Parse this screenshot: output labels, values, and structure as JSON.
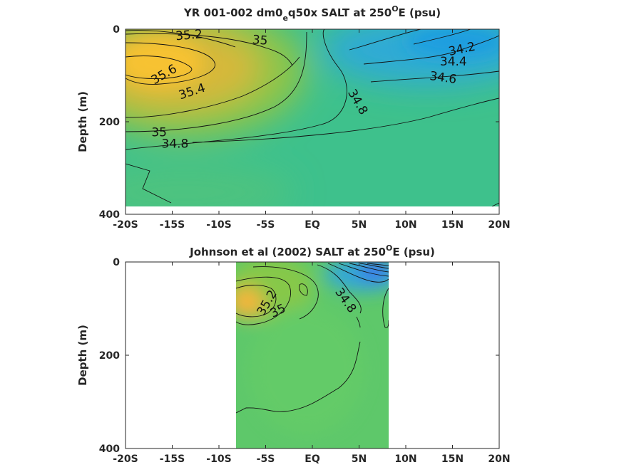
{
  "chart_data": [
    {
      "type": "contour",
      "title": {
        "pre": "YR 001-002 dm0",
        "sub": "e",
        "mid": "q50x SALT at 250",
        "sup": "O",
        "post": "E (psu)"
      },
      "ylabel": "Depth (m)",
      "xlim": [
        -20,
        20
      ],
      "ylim": [
        400,
        0
      ],
      "y_reversed": true,
      "x_ticks": [
        -20,
        -15,
        -10,
        -5,
        0,
        5,
        10,
        15,
        20
      ],
      "x_tick_labels": [
        "-20S",
        "-15S",
        "-10S",
        "-5S",
        "EQ",
        "5N",
        "10N",
        "15N",
        "20N"
      ],
      "y_ticks": [
        0,
        200,
        400
      ],
      "y_tick_labels": [
        "0",
        "200",
        "400"
      ],
      "data_extent": {
        "lat": [
          -20,
          20
        ],
        "depth": [
          0,
          380
        ]
      },
      "colormap": "parula",
      "contour_labels": [
        {
          "text": "35.2",
          "lat": -13.2,
          "depth": 12,
          "angle": -5
        },
        {
          "text": "35",
          "lat": -5.6,
          "depth": 23,
          "angle": 5
        },
        {
          "text": "35.6",
          "lat": -15.9,
          "depth": 97,
          "angle": -30
        },
        {
          "text": "35.4",
          "lat": -12.9,
          "depth": 134,
          "angle": -18
        },
        {
          "text": "35",
          "lat": -16.4,
          "depth": 222,
          "angle": 0
        },
        {
          "text": "34.8",
          "lat": -14.7,
          "depth": 247,
          "angle": 0
        },
        {
          "text": "34.2",
          "lat": 16.0,
          "depth": 42,
          "angle": -12
        },
        {
          "text": "34.4",
          "lat": 15.1,
          "depth": 69,
          "angle": 0
        },
        {
          "text": "34.6",
          "lat": 14.0,
          "depth": 104,
          "angle": 8
        },
        {
          "text": "34.8",
          "lat": 4.9,
          "depth": 157,
          "angle": 60
        }
      ]
    },
    {
      "type": "contour",
      "title": {
        "pre": "Johnson et al (2002) SALT at 250",
        "sup": "O",
        "post": "E (psu)"
      },
      "ylabel": "Depth (m)",
      "xlim": [
        -20,
        20
      ],
      "ylim": [
        400,
        0
      ],
      "y_reversed": true,
      "x_ticks": [
        -20,
        -15,
        -10,
        -5,
        0,
        5,
        10,
        15,
        20
      ],
      "x_tick_labels": [
        "-20S",
        "-15S",
        "-10S",
        "-5S",
        "EQ",
        "5N",
        "10N",
        "15N",
        "20N"
      ],
      "y_ticks": [
        0,
        200,
        400
      ],
      "y_tick_labels": [
        "0",
        "200",
        "400"
      ],
      "data_extent": {
        "lat": [
          -8,
          8.3
        ],
        "depth": [
          0,
          400
        ]
      },
      "colormap": "parula",
      "contour_labels": [
        {
          "text": "35.2",
          "lat": -4.9,
          "depth": 87,
          "angle": -60
        },
        {
          "text": "35",
          "lat": -3.7,
          "depth": 104,
          "angle": -25
        },
        {
          "text": "34.8",
          "lat": 3.6,
          "depth": 82,
          "angle": 55
        }
      ]
    }
  ]
}
